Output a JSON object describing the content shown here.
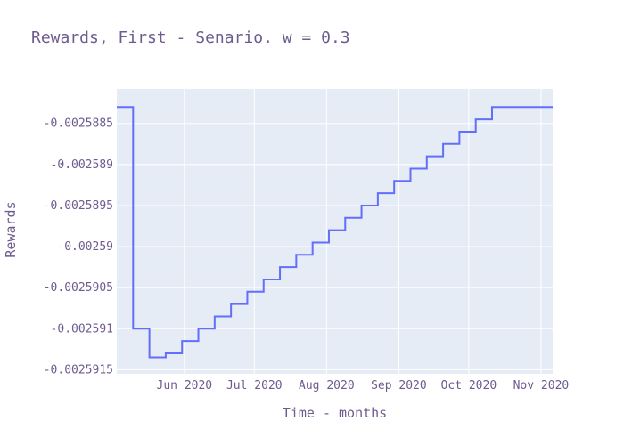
{
  "chart_data": {
    "type": "line",
    "line_shape": "step",
    "title": "Rewards, First - Senario. w = 0.3",
    "xlabel": "Time - months",
    "ylabel": "Rewards",
    "x_tick_labels": [
      "Jun 2020",
      "Jul 2020",
      "Aug 2020",
      "Sep 2020",
      "Oct 2020",
      "Nov 2020"
    ],
    "x_tick_dates": [
      "2020-06-01",
      "2020-07-01",
      "2020-08-01",
      "2020-09-01",
      "2020-10-01",
      "2020-11-01"
    ],
    "y_tick_labels": [
      "-0.0025885",
      "-0.002589",
      "-0.0025895",
      "-0.00259",
      "-0.0025905",
      "-0.002591",
      "-0.0025915"
    ],
    "y_tick_values": [
      -0.0025885,
      -0.002589,
      -0.0025895,
      -0.00259,
      -0.0025905,
      -0.002591,
      -0.0025915
    ],
    "xlim": [
      "2020-05-03",
      "2020-11-06"
    ],
    "ylim": [
      -0.00259155,
      -0.00258808
    ],
    "grid": true,
    "colors": {
      "line": "#636efa",
      "plot_bg": "#e5ecf6",
      "grid": "#ffffff",
      "text": "#6e5b8f"
    },
    "series": [
      {
        "x": [
          "2020-05-03",
          "2020-05-10",
          "2020-05-17",
          "2020-05-24",
          "2020-05-31",
          "2020-06-07",
          "2020-06-14",
          "2020-06-21",
          "2020-06-28",
          "2020-07-05",
          "2020-07-12",
          "2020-07-19",
          "2020-07-26",
          "2020-08-02",
          "2020-08-09",
          "2020-08-16",
          "2020-08-23",
          "2020-08-30",
          "2020-09-06",
          "2020-09-13",
          "2020-09-20",
          "2020-09-27",
          "2020-10-04",
          "2020-10-11",
          "2020-10-18",
          "2020-10-25",
          "2020-11-01",
          "2020-11-06"
        ],
        "y": [
          -0.0025883,
          -0.002591,
          -0.00259135,
          -0.0025913,
          -0.00259115,
          -0.002591,
          -0.00259085,
          -0.0025907,
          -0.00259055,
          -0.0025904,
          -0.00259025,
          -0.0025901,
          -0.00258995,
          -0.0025898,
          -0.00258965,
          -0.0025895,
          -0.00258935,
          -0.0025892,
          -0.00258905,
          -0.0025889,
          -0.00258875,
          -0.0025886,
          -0.00258845,
          -0.0025883,
          -0.0025883,
          -0.0025883,
          -0.0025883,
          -0.0025883
        ]
      }
    ]
  }
}
